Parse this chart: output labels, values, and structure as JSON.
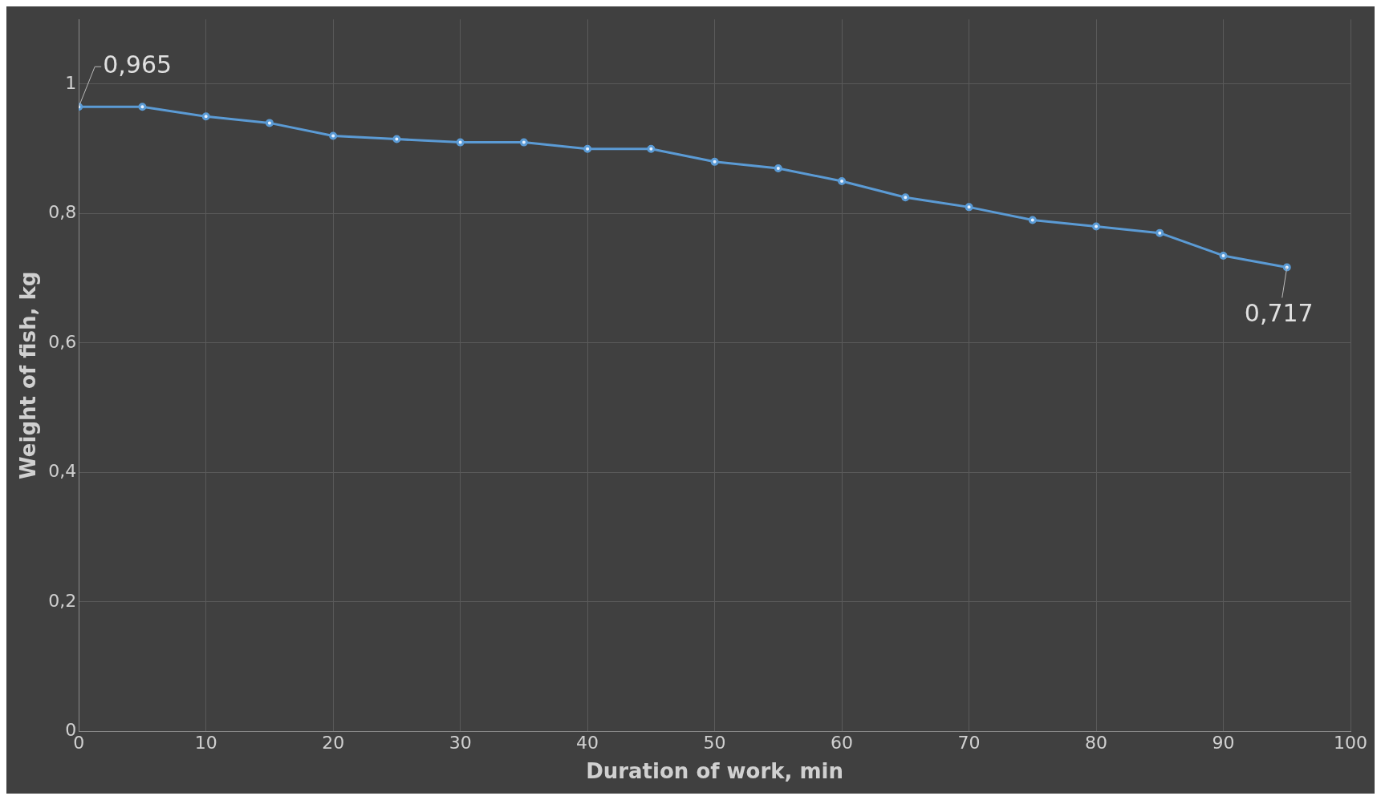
{
  "chart_data": {
    "type": "line",
    "xlabel": "Duration of work, min",
    "ylabel": "Weight of fish, kg",
    "x": [
      0,
      5,
      10,
      15,
      20,
      25,
      30,
      35,
      40,
      45,
      50,
      55,
      60,
      65,
      70,
      75,
      80,
      85,
      90,
      95
    ],
    "series": [
      {
        "color": "#5b9bd5",
        "values": [
          0.965,
          0.965,
          0.95,
          0.94,
          0.92,
          0.915,
          0.91,
          0.91,
          0.9,
          0.9,
          0.88,
          0.87,
          0.85,
          0.825,
          0.81,
          0.79,
          0.78,
          0.77,
          0.735,
          0.717
        ]
      }
    ],
    "xlim": [
      0,
      100
    ],
    "xticks": [
      0,
      10,
      20,
      30,
      40,
      50,
      60,
      70,
      80,
      90,
      100
    ],
    "ylim": [
      0,
      1.1
    ],
    "yticks": [
      0,
      {
        "value": 0.2,
        "label": "0,2"
      },
      {
        "value": 0.4,
        "label": "0,4"
      },
      {
        "value": 0.6,
        "label": "0,6"
      },
      {
        "value": 0.8,
        "label": "0,8"
      },
      1
    ],
    "grid": true,
    "legend": false,
    "marker": "circle",
    "line_style": "solid",
    "annotations": [
      {
        "text": "0,965",
        "x": 0,
        "y": 0.965
      },
      {
        "text": "0,717",
        "x": 95,
        "y": 0.717
      }
    ]
  }
}
